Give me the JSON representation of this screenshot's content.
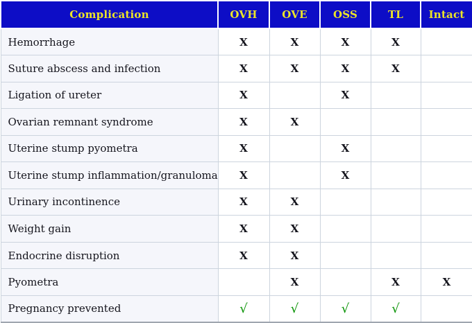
{
  "table": {
    "columns": [
      "Complication",
      "OVH",
      "OVE",
      "OSS",
      "TL",
      "Intact"
    ],
    "x_symbol": "X",
    "check_symbol": "√",
    "rows": [
      {
        "complication": "Hemorrhage",
        "cells": [
          "X",
          "X",
          "X",
          "X",
          ""
        ]
      },
      {
        "complication": "Suture abscess and infection",
        "cells": [
          "X",
          "X",
          "X",
          "X",
          ""
        ]
      },
      {
        "complication": "Ligation of ureter",
        "cells": [
          "X",
          "",
          "X",
          "",
          ""
        ]
      },
      {
        "complication": "Ovarian remnant syndrome",
        "cells": [
          "X",
          "X",
          "",
          "",
          ""
        ]
      },
      {
        "complication": "Uterine stump pyometra",
        "cells": [
          "X",
          "",
          "X",
          "",
          ""
        ]
      },
      {
        "complication": "Uterine stump inflammation/granuloma",
        "cells": [
          "X",
          "",
          "X",
          "",
          ""
        ]
      },
      {
        "complication": "Urinary incontinence",
        "cells": [
          "X",
          "X",
          "",
          "",
          ""
        ]
      },
      {
        "complication": "Weight gain",
        "cells": [
          "X",
          "X",
          "",
          "",
          ""
        ]
      },
      {
        "complication": "Endocrine disruption",
        "cells": [
          "X",
          "X",
          "",
          "",
          ""
        ]
      },
      {
        "complication": "Pyometra",
        "cells": [
          "",
          "X",
          "",
          "X",
          "X"
        ]
      },
      {
        "complication": "Pregnancy prevented",
        "cells": [
          "√",
          "√",
          "√",
          "√",
          ""
        ]
      }
    ],
    "colors": {
      "header_bg": "#0d0dc6",
      "header_text": "#ece428",
      "check_green": "#079203",
      "mark_text": "#15151d",
      "label_cell_bg": "#f5f6fb",
      "data_cell_bg": "#ffffff",
      "grid_line": "#ccd4de"
    }
  }
}
